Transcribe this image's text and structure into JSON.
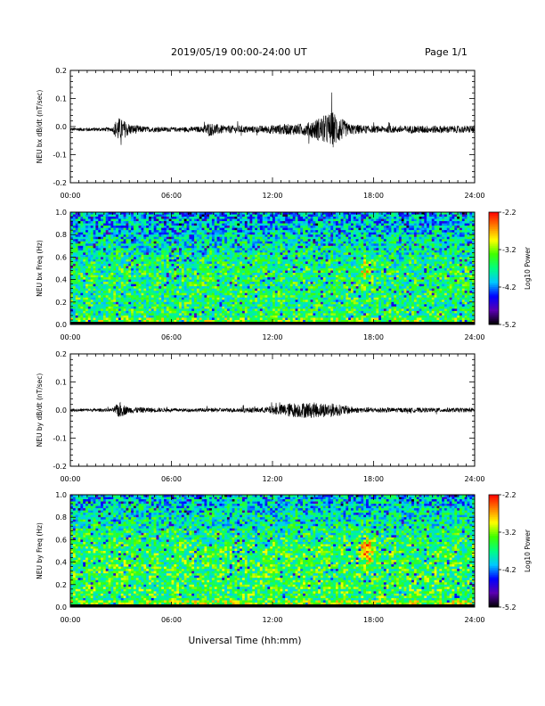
{
  "header": {
    "title": "2019/05/19  00:00-24:00 UT",
    "page": "Page 1/1"
  },
  "footer": {
    "xlabel": "Universal Time (hh:mm)"
  },
  "colorbar": {
    "label": "Log10 Power",
    "ticks": [
      "-2.2",
      "-3.2",
      "-4.2",
      "-5.2"
    ],
    "range": [
      -5.2,
      -2.2
    ],
    "colors": [
      "#000000",
      "#5a00b0",
      "#0000ff",
      "#00c8ff",
      "#00ff80",
      "#40ff00",
      "#ffff00",
      "#ff8000",
      "#ff0000"
    ]
  },
  "chart_data": [
    {
      "type": "line",
      "ylabel": "NEU bx dB/dt (nT/sec)",
      "xlim": [
        0,
        24
      ],
      "ylim": [
        -0.2,
        0.2
      ],
      "xticks": [
        "00:00",
        "06:00",
        "12:00",
        "18:00",
        "24:00"
      ],
      "yticks": [
        "0.2",
        "0.1",
        "0.0",
        "-0.1",
        "-0.2"
      ],
      "baseline": -0.01,
      "envelope": [
        {
          "x": 0.0,
          "amp": 0.006
        },
        {
          "x": 2.5,
          "amp": 0.007
        },
        {
          "x": 2.8,
          "amp": 0.045
        },
        {
          "x": 3.1,
          "amp": 0.035
        },
        {
          "x": 3.6,
          "amp": 0.018
        },
        {
          "x": 4.5,
          "amp": 0.01
        },
        {
          "x": 6.0,
          "amp": 0.008
        },
        {
          "x": 7.8,
          "amp": 0.01
        },
        {
          "x": 8.2,
          "amp": 0.025
        },
        {
          "x": 9.0,
          "amp": 0.015
        },
        {
          "x": 11.0,
          "amp": 0.012
        },
        {
          "x": 12.5,
          "amp": 0.018
        },
        {
          "x": 14.0,
          "amp": 0.022
        },
        {
          "x": 15.6,
          "amp": 0.065
        },
        {
          "x": 16.5,
          "amp": 0.02
        },
        {
          "x": 18.0,
          "amp": 0.012
        },
        {
          "x": 21.0,
          "amp": 0.014
        },
        {
          "x": 24.0,
          "amp": 0.012
        }
      ]
    },
    {
      "type": "heatmap",
      "ylabel": "NEU bx Freq (Hz)",
      "xlim": [
        0,
        24
      ],
      "ylim": [
        0,
        1.0
      ],
      "xticks": [
        "00:00",
        "06:00",
        "12:00",
        "18:00",
        "24:00"
      ],
      "yticks": [
        "1.0",
        "0.8",
        "0.6",
        "0.4",
        "0.2",
        "0.0"
      ],
      "background_log_power": -3.6,
      "high_band_log_power": -4.1,
      "low_freq_band_log_power": -2.6,
      "features": [
        {
          "x": 17.5,
          "y": 0.5,
          "log_power": -2.9
        }
      ]
    },
    {
      "type": "line",
      "ylabel": "NEU by dB/dt (nT/sec)",
      "xlim": [
        0,
        24
      ],
      "ylim": [
        -0.2,
        0.2
      ],
      "xticks": [
        "00:00",
        "06:00",
        "12:00",
        "18:00",
        "24:00"
      ],
      "yticks": [
        "0.2",
        "0.1",
        "0.0",
        "-0.1",
        "-0.2"
      ],
      "baseline": 0.0,
      "envelope": [
        {
          "x": 0.0,
          "amp": 0.005
        },
        {
          "x": 2.5,
          "amp": 0.006
        },
        {
          "x": 2.9,
          "amp": 0.03
        },
        {
          "x": 3.4,
          "amp": 0.012
        },
        {
          "x": 6.0,
          "amp": 0.006
        },
        {
          "x": 9.0,
          "amp": 0.007
        },
        {
          "x": 11.5,
          "amp": 0.01
        },
        {
          "x": 13.0,
          "amp": 0.025
        },
        {
          "x": 14.0,
          "amp": 0.028
        },
        {
          "x": 15.5,
          "amp": 0.025
        },
        {
          "x": 17.0,
          "amp": 0.01
        },
        {
          "x": 20.0,
          "amp": 0.008
        },
        {
          "x": 24.0,
          "amp": 0.008
        }
      ]
    },
    {
      "type": "heatmap",
      "ylabel": "NEU by Freq (Hz)",
      "xlim": [
        0,
        24
      ],
      "ylim": [
        0,
        1.0
      ],
      "xticks": [
        "00:00",
        "06:00",
        "12:00",
        "18:00",
        "24:00"
      ],
      "yticks": [
        "1.0",
        "0.8",
        "0.6",
        "0.4",
        "0.2",
        "0.0"
      ],
      "background_log_power": -3.5,
      "high_band_log_power": -4.0,
      "low_freq_band_log_power": -2.6,
      "features": [
        {
          "x": 17.6,
          "y": 0.5,
          "log_power": -2.4
        }
      ]
    }
  ]
}
